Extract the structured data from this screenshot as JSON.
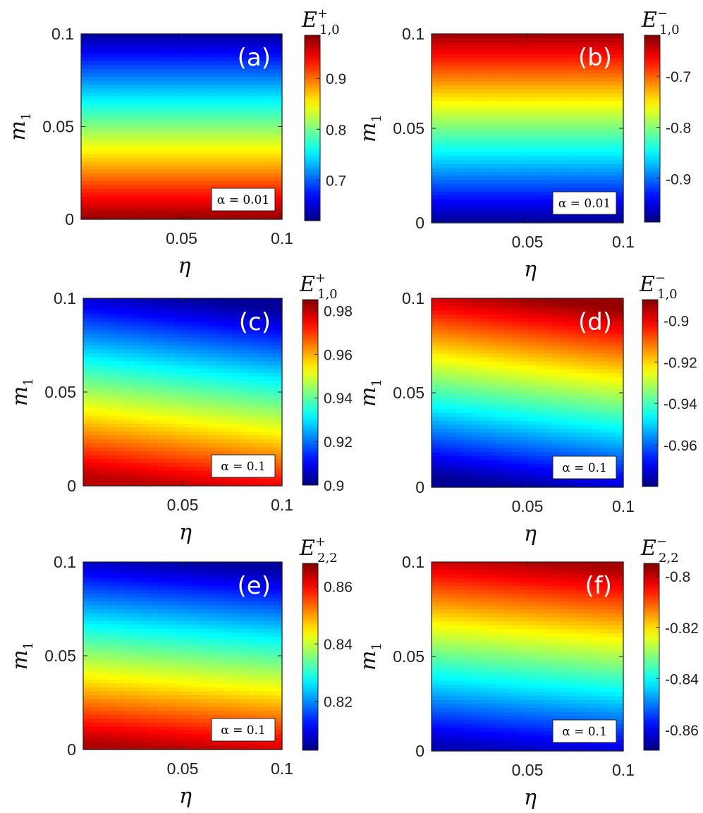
{
  "chart_data": [
    {
      "type": "heatmap",
      "panel_label": "(a)",
      "xlabel": "η",
      "ylabel": "m",
      "ylabel_sub": "1",
      "xlim": [
        0,
        0.1
      ],
      "ylim": [
        0,
        0.1
      ],
      "x_ticks": [
        "0.05",
        "0.1"
      ],
      "y_ticks": [
        "0",
        "0.05",
        "0.1"
      ],
      "colorbar_label": "E",
      "colorbar_label_sup": "+",
      "colorbar_label_sub": "1,0",
      "colorbar_ticks": [
        "0.7",
        "0.8",
        "0.9"
      ],
      "clim": [
        0.62,
        0.985
      ],
      "annotation": "α = 0.01",
      "z_at_m1_0": 0.98,
      "z_at_m1_max": 0.63,
      "tilt": 0.0
    },
    {
      "type": "heatmap",
      "panel_label": "(b)",
      "xlabel": "η",
      "ylabel": "m",
      "ylabel_sub": "1",
      "xlim": [
        0,
        0.1
      ],
      "ylim": [
        0,
        0.1
      ],
      "x_ticks": [
        "0.05",
        "0.1"
      ],
      "y_ticks": [
        "0",
        "0.05",
        "0.1"
      ],
      "colorbar_label": "E",
      "colorbar_label_sup": "−",
      "colorbar_label_sub": "1,0",
      "colorbar_ticks": [
        "-0.7",
        "-0.8",
        "-0.9"
      ],
      "clim": [
        -0.985,
        -0.62
      ],
      "annotation": "α = 0.01",
      "z_at_m1_0": -0.98,
      "z_at_m1_max": -0.63,
      "tilt": 0.0
    },
    {
      "type": "heatmap",
      "panel_label": "(c)",
      "xlabel": "η",
      "ylabel": "m",
      "ylabel_sub": "1",
      "xlim": [
        0,
        0.1
      ],
      "ylim": [
        0,
        0.1
      ],
      "x_ticks": [
        "0.05",
        "0.1"
      ],
      "y_ticks": [
        "0",
        "0.05",
        "0.1"
      ],
      "colorbar_label": "E",
      "colorbar_label_sup": "+",
      "colorbar_label_sub": "1,0",
      "colorbar_ticks": [
        "0.9",
        "0.92",
        "0.94",
        "0.96",
        "0.98"
      ],
      "clim": [
        0.9,
        0.985
      ],
      "annotation": "α = 0.1",
      "z_at_m1_0": 0.98,
      "z_at_m1_max": 0.902,
      "tilt": 0.012
    },
    {
      "type": "heatmap",
      "panel_label": "(d)",
      "xlabel": "η",
      "ylabel": "m",
      "ylabel_sub": "1",
      "xlim": [
        0,
        0.1
      ],
      "ylim": [
        0,
        0.1
      ],
      "x_ticks": [
        "0.05",
        "0.1"
      ],
      "y_ticks": [
        "0",
        "0.05",
        "0.1"
      ],
      "colorbar_label": "E",
      "colorbar_label_sup": "−",
      "colorbar_label_sub": "1,0",
      "colorbar_ticks": [
        "-0.9",
        "-0.92",
        "-0.94",
        "-0.96"
      ],
      "clim": [
        -0.98,
        -0.89
      ],
      "annotation": "α = 0.1",
      "z_at_m1_0": -0.978,
      "z_at_m1_max": -0.892,
      "tilt": 0.012
    },
    {
      "type": "heatmap",
      "panel_label": "(e)",
      "xlabel": "η",
      "ylabel": "m",
      "ylabel_sub": "1",
      "xlim": [
        0,
        0.1
      ],
      "ylim": [
        0,
        0.1
      ],
      "x_ticks": [
        "0.05",
        "0.1"
      ],
      "y_ticks": [
        "0",
        "0.05",
        "0.1"
      ],
      "colorbar_label": "E",
      "colorbar_label_sup": "+",
      "colorbar_label_sub": "2,2",
      "colorbar_ticks": [
        "0.82",
        "0.84",
        "0.86"
      ],
      "clim": [
        0.803,
        0.868
      ],
      "annotation": "α = 0.1",
      "z_at_m1_0": 0.865,
      "z_at_m1_max": 0.805,
      "tilt": 0.008
    },
    {
      "type": "heatmap",
      "panel_label": "(f)",
      "xlabel": "η",
      "ylabel": "m",
      "ylabel_sub": "1",
      "xlim": [
        0,
        0.1
      ],
      "ylim": [
        0,
        0.1
      ],
      "x_ticks": [
        "0.05",
        "0.1"
      ],
      "y_ticks": [
        "0",
        "0.05",
        "0.1"
      ],
      "colorbar_label": "E",
      "colorbar_label_sup": "−",
      "colorbar_label_sub": "2,2",
      "colorbar_ticks": [
        "-0.8",
        "-0.82",
        "-0.84",
        "-0.86"
      ],
      "clim": [
        -0.868,
        -0.795
      ],
      "annotation": "α = 0.1",
      "z_at_m1_0": -0.864,
      "z_at_m1_max": -0.798,
      "tilt": 0.008
    }
  ]
}
